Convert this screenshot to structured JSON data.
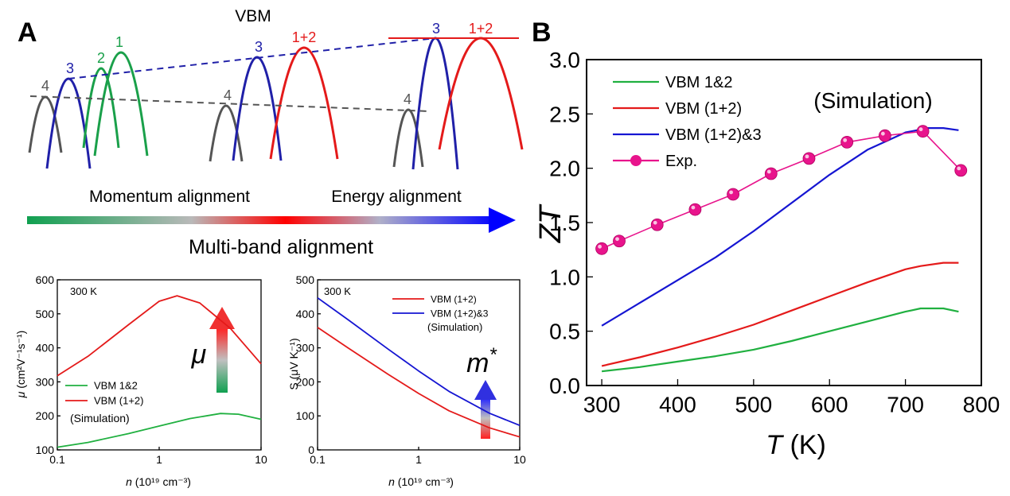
{
  "colors": {
    "green": "#20b040",
    "red": "#e41a1a",
    "blue": "#1515d2",
    "gray": "#555555",
    "darkblue": "#2020a8",
    "pink": "#e8148c",
    "band_green": "#1aa04a"
  },
  "panel_a": {
    "label": "A",
    "vbm_title": "VBM",
    "band_labels": [
      "4",
      "3",
      "2",
      "1",
      "4",
      "3",
      "1+2",
      "4",
      "3",
      "1+2"
    ],
    "momentum_label": "Momentum alignment",
    "energy_label": "Energy alignment",
    "multiband_label": "Multi-band alignment"
  },
  "panel_b": {
    "label": "B"
  },
  "chart_data": [
    {
      "id": "zt_vs_t",
      "type": "line",
      "title": "",
      "annotation": "(Simulation)",
      "xlabel": {
        "var": "T",
        "unit": "(K)"
      },
      "ylabel": "ZT",
      "xlim": [
        280,
        800
      ],
      "ylim": [
        0,
        3.0
      ],
      "xticks": [
        "300",
        "400",
        "500",
        "600",
        "700",
        "800"
      ],
      "yticks": [
        "0.0",
        "0.5",
        "1.0",
        "1.5",
        "2.0",
        "2.5",
        "3.0"
      ],
      "legend_position": "top-left",
      "series": [
        {
          "name": "VBM 1&2",
          "color": "green",
          "x": [
            300,
            350,
            400,
            450,
            500,
            550,
            600,
            650,
            700,
            720,
            750,
            770
          ],
          "y": [
            0.13,
            0.17,
            0.22,
            0.27,
            0.33,
            0.41,
            0.5,
            0.59,
            0.68,
            0.71,
            0.71,
            0.68
          ]
        },
        {
          "name": "VBM (1+2)",
          "color": "red",
          "x": [
            300,
            350,
            400,
            450,
            500,
            550,
            600,
            650,
            700,
            720,
            750,
            770
          ],
          "y": [
            0.18,
            0.26,
            0.35,
            0.45,
            0.56,
            0.69,
            0.82,
            0.95,
            1.07,
            1.1,
            1.13,
            1.13
          ]
        },
        {
          "name": "VBM (1+2)&3",
          "color": "blue",
          "x": [
            300,
            350,
            400,
            450,
            500,
            550,
            600,
            650,
            700,
            730,
            750,
            770
          ],
          "y": [
            0.55,
            0.76,
            0.97,
            1.18,
            1.42,
            1.68,
            1.94,
            2.17,
            2.33,
            2.37,
            2.37,
            2.35
          ]
        },
        {
          "name": "Exp.",
          "color": "pink",
          "markers": true,
          "x": [
            300,
            323,
            373,
            423,
            473,
            523,
            573,
            623,
            673,
            723,
            773
          ],
          "y": [
            1.26,
            1.33,
            1.48,
            1.62,
            1.76,
            1.95,
            2.09,
            2.24,
            2.3,
            2.34,
            1.98
          ]
        }
      ]
    },
    {
      "id": "mobility_vs_n",
      "type": "line",
      "title": "",
      "annotation": "300 K",
      "xlabel": {
        "var": "n",
        "unit": "(10¹⁹ cm⁻³)"
      },
      "ylabel": {
        "var": "μ",
        "unit": "(cm²V⁻¹s⁻¹)"
      },
      "xscale": "log",
      "xlim": [
        0.1,
        10
      ],
      "ylim": [
        100,
        600
      ],
      "xticks": [
        "0.1",
        "1",
        "10"
      ],
      "yticks": [
        "100",
        "200",
        "300",
        "400",
        "500",
        "600"
      ],
      "legend_position": "bottom-left",
      "legend_note": "(Simulation)",
      "arrow_label": "μ",
      "series": [
        {
          "name": "VBM 1&2",
          "color": "green",
          "x": [
            0.1,
            0.2,
            0.5,
            1,
            2,
            4,
            6,
            10
          ],
          "y": [
            108,
            122,
            148,
            170,
            192,
            207,
            205,
            190
          ]
        },
        {
          "name": "VBM (1+2)",
          "color": "red",
          "x": [
            0.1,
            0.2,
            0.5,
            1,
            1.5,
            2.5,
            5,
            10
          ],
          "y": [
            318,
            375,
            468,
            537,
            553,
            532,
            457,
            353
          ]
        }
      ]
    },
    {
      "id": "seebeck_vs_n",
      "type": "line",
      "title": "",
      "annotation": "300 K",
      "xlabel": {
        "var": "n",
        "unit": "(10¹⁹ cm⁻³)"
      },
      "ylabel": "S (μV K⁻¹)",
      "xscale": "log",
      "xlim": [
        0.1,
        10
      ],
      "ylim": [
        0,
        500
      ],
      "xticks": [
        "0.1",
        "1",
        "10"
      ],
      "yticks": [
        "0",
        "100",
        "200",
        "300",
        "400",
        "500"
      ],
      "legend_position": "top-right",
      "legend_note": "(Simulation)",
      "arrow_label": "m",
      "arrow_label_sup": "*",
      "series": [
        {
          "name": "VBM (1+2)",
          "color": "red",
          "x": [
            0.1,
            0.2,
            0.5,
            1,
            2,
            5,
            10
          ],
          "y": [
            360,
            300,
            222,
            166,
            115,
            65,
            38
          ]
        },
        {
          "name": "VBM (1+2)&3",
          "color": "blue",
          "x": [
            0.1,
            0.2,
            0.5,
            1,
            2,
            5,
            10
          ],
          "y": [
            447,
            383,
            296,
            232,
            172,
            108,
            72
          ]
        }
      ]
    }
  ]
}
